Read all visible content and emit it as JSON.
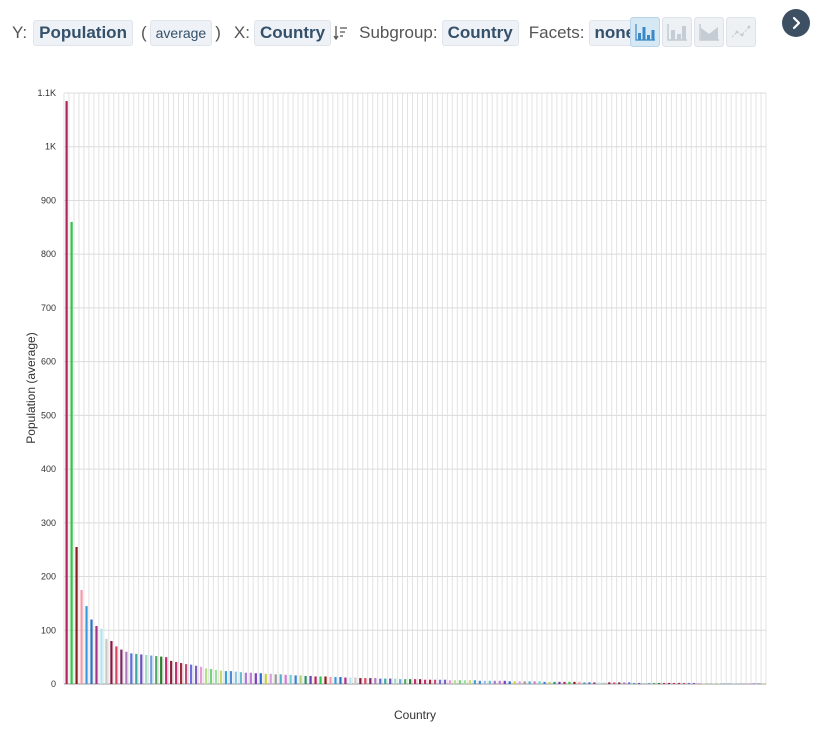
{
  "toolbar": {
    "y_prefix": "Y:",
    "y_field": "Population",
    "aggregate": "average",
    "x_prefix": "X:",
    "x_field": "Country",
    "subgroup_prefix": "Subgroup:",
    "subgroup_field": "Country",
    "facets_prefix": "Facets:",
    "facets_value": "none",
    "chart_types": [
      "bar-chart-icon",
      "stacked-bar-chart-icon",
      "area-chart-icon",
      "line-chart-icon"
    ],
    "active_chart_type": "bar-chart-icon"
  },
  "chart_data": {
    "type": "bar",
    "ylabel": "Population (average)",
    "xlabel": "Country",
    "ylim": [
      0,
      1100
    ],
    "yticks": [
      0,
      100,
      200,
      300,
      400,
      500,
      600,
      700,
      800,
      900,
      1000,
      1100
    ],
    "ytick_labels": [
      "0",
      "100",
      "200",
      "300",
      "400",
      "500",
      "600",
      "700",
      "800",
      "900",
      "1K",
      "1.1K"
    ],
    "grid": true,
    "legend": "none",
    "values": [
      1085,
      860,
      255,
      175,
      145,
      120,
      108,
      103,
      84,
      80,
      70,
      64,
      60,
      57,
      56,
      55,
      54,
      53,
      52,
      51,
      50,
      43,
      41,
      39,
      37,
      36,
      34,
      32,
      29,
      28,
      26,
      25,
      24,
      24,
      23,
      22,
      21,
      21,
      20,
      20,
      19,
      19,
      18,
      18,
      17,
      17,
      16,
      16,
      15,
      15,
      14,
      14,
      14,
      13,
      13,
      13,
      12,
      12,
      12,
      11,
      11,
      11,
      11,
      10,
      10,
      10,
      10,
      9,
      9,
      9,
      9,
      9,
      8,
      8,
      8,
      8,
      8,
      7,
      7,
      7,
      7,
      7,
      7,
      6,
      6,
      6,
      6,
      6,
      6,
      5,
      5,
      5,
      5,
      5,
      5,
      5,
      4,
      4,
      4,
      4,
      4,
      4,
      4,
      4,
      3,
      3,
      3,
      3,
      3,
      3,
      3,
      3,
      3,
      3,
      2,
      2,
      2,
      2,
      2,
      2,
      2,
      2,
      2,
      2,
      2,
      2,
      2,
      2,
      1,
      1,
      1,
      1,
      1,
      1,
      1,
      1,
      1,
      1,
      1,
      1,
      1
    ],
    "colors": [
      "#b3245b",
      "#33c24a",
      "#8a1d1d",
      "#f29aa8",
      "#3b9bd8",
      "#2f6fc2",
      "#a6318a",
      "#b0e5f0",
      "#c9c9c9",
      "#8a1642",
      "#d4475e",
      "#7d2a64",
      "#b17abf",
      "#5b6fd6",
      "#3aa7a3",
      "#6b4fbf",
      "#9fd7c9",
      "#6f9fdc",
      "#55a868",
      "#2b7d2e",
      "#c22b6f",
      "#8e1f3f",
      "#c0306b",
      "#a02a44",
      "#bf4d77",
      "#6e6fdc",
      "#7a5fbf",
      "#e79bd4",
      "#b5e08a",
      "#7bd17b",
      "#9fe0a0",
      "#c8d86e",
      "#3aa0d8",
      "#4f8ad8",
      "#8ec7e8",
      "#6bbcd0",
      "#a97bd6",
      "#c07ad0",
      "#7a3fbf",
      "#2d6bd0",
      "#c4cf4a",
      "#d9a0d9",
      "#9b9b9b",
      "#4fb0c8",
      "#d07ad8",
      "#6fcfcf",
      "#3b7fd8",
      "#b0d070",
      "#2f8f6f",
      "#6a3fa8"
    ]
  }
}
